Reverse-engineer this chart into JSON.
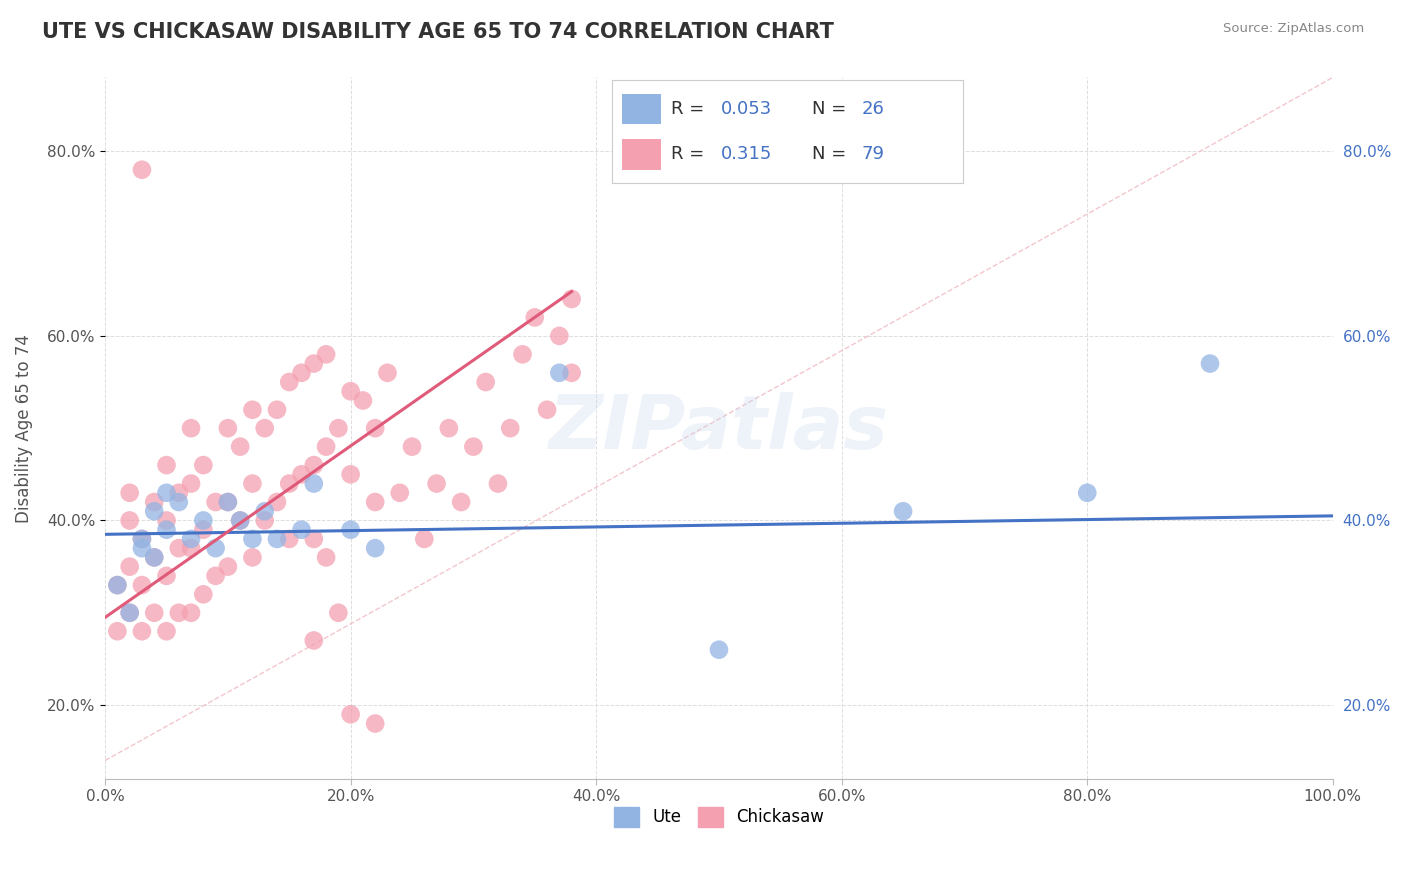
{
  "title": "UTE VS CHICKASAW DISABILITY AGE 65 TO 74 CORRELATION CHART",
  "source": "Source: ZipAtlas.com",
  "xlabel": "",
  "ylabel": "Disability Age 65 to 74",
  "xlim": [
    0.0,
    1.0
  ],
  "ylim": [
    0.12,
    0.88
  ],
  "xticks": [
    0.0,
    0.2,
    0.4,
    0.6,
    0.8,
    1.0
  ],
  "xtick_labels": [
    "0.0%",
    "20.0%",
    "40.0%",
    "60.0%",
    "80.0%",
    "100.0%"
  ],
  "yticks": [
    0.2,
    0.4,
    0.6,
    0.8
  ],
  "ytick_labels": [
    "20.0%",
    "40.0%",
    "60.0%",
    "80.0%"
  ],
  "ute_R": 0.053,
  "ute_N": 26,
  "chickasaw_R": 0.315,
  "chickasaw_N": 79,
  "ute_color": "#92b4e3",
  "chickasaw_color": "#f4a0b0",
  "ute_line_color": "#4472c4",
  "chickasaw_line_color": "#e05a7a",
  "ref_line_color": "#f0b8c0",
  "background_color": "#ffffff",
  "grid_color": "#dddddd",
  "watermark": "ZIPatlas",
  "ute_x": [
    0.01,
    0.02,
    0.03,
    0.03,
    0.04,
    0.04,
    0.05,
    0.05,
    0.06,
    0.07,
    0.08,
    0.09,
    0.1,
    0.11,
    0.12,
    0.13,
    0.14,
    0.16,
    0.17,
    0.2,
    0.22,
    0.37,
    0.5,
    0.65,
    0.8,
    0.9
  ],
  "ute_y": [
    0.33,
    0.3,
    0.38,
    0.37,
    0.41,
    0.36,
    0.39,
    0.43,
    0.42,
    0.38,
    0.4,
    0.37,
    0.42,
    0.4,
    0.38,
    0.41,
    0.38,
    0.39,
    0.44,
    0.39,
    0.37,
    0.56,
    0.26,
    0.41,
    0.43,
    0.57
  ],
  "chickasaw_x": [
    0.01,
    0.01,
    0.02,
    0.02,
    0.02,
    0.02,
    0.03,
    0.03,
    0.03,
    0.03,
    0.04,
    0.04,
    0.04,
    0.05,
    0.05,
    0.05,
    0.05,
    0.06,
    0.06,
    0.06,
    0.07,
    0.07,
    0.07,
    0.07,
    0.08,
    0.08,
    0.08,
    0.09,
    0.09,
    0.1,
    0.1,
    0.1,
    0.11,
    0.11,
    0.12,
    0.12,
    0.12,
    0.13,
    0.13,
    0.14,
    0.14,
    0.15,
    0.15,
    0.15,
    0.16,
    0.16,
    0.17,
    0.17,
    0.17,
    0.18,
    0.18,
    0.19,
    0.2,
    0.2,
    0.21,
    0.22,
    0.22,
    0.23,
    0.24,
    0.25,
    0.26,
    0.27,
    0.28,
    0.29,
    0.3,
    0.31,
    0.32,
    0.33,
    0.34,
    0.35,
    0.36,
    0.37,
    0.38,
    0.38,
    0.18,
    0.19,
    0.2,
    0.17,
    0.22
  ],
  "chickasaw_y": [
    0.28,
    0.33,
    0.3,
    0.35,
    0.4,
    0.43,
    0.28,
    0.33,
    0.38,
    0.78,
    0.3,
    0.36,
    0.42,
    0.28,
    0.34,
    0.4,
    0.46,
    0.3,
    0.37,
    0.43,
    0.3,
    0.37,
    0.44,
    0.5,
    0.32,
    0.39,
    0.46,
    0.34,
    0.42,
    0.35,
    0.42,
    0.5,
    0.4,
    0.48,
    0.36,
    0.44,
    0.52,
    0.4,
    0.5,
    0.42,
    0.52,
    0.38,
    0.44,
    0.55,
    0.45,
    0.56,
    0.38,
    0.46,
    0.57,
    0.48,
    0.58,
    0.5,
    0.45,
    0.54,
    0.53,
    0.42,
    0.5,
    0.56,
    0.43,
    0.48,
    0.38,
    0.44,
    0.5,
    0.42,
    0.48,
    0.55,
    0.44,
    0.5,
    0.58,
    0.62,
    0.52,
    0.6,
    0.56,
    0.64,
    0.36,
    0.3,
    0.19,
    0.27,
    0.18
  ],
  "title_color": "#333333",
  "axis_label_color": "#555555",
  "tick_color": "#555555",
  "legend_R_color": "#4472c4",
  "legend_N_color": "#4472c4",
  "ute_trend_x0": 0.0,
  "ute_trend_x1": 1.0,
  "ute_trend_y0": 0.385,
  "ute_trend_y1": 0.405,
  "chickasaw_trend_x0": 0.0,
  "chickasaw_trend_x1": 0.38,
  "chickasaw_trend_y0": 0.295,
  "chickasaw_trend_y1": 0.648
}
